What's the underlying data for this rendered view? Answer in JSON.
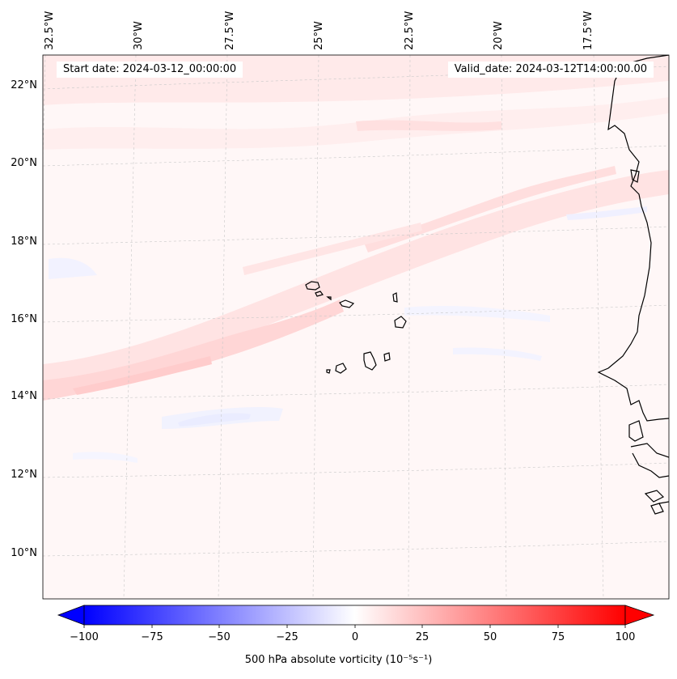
{
  "header": {
    "start_date": "Start date: 2024-03-12_00:00:00",
    "valid_date": "Valid_date: 2024-03-12T14:00:00.00"
  },
  "axes": {
    "lon_labels": [
      "32.5°W",
      "30°W",
      "27.5°W",
      "25°W",
      "22.5°W",
      "20°W",
      "17.5°W"
    ],
    "lat_labels": [
      "22°N",
      "20°N",
      "18°N",
      "16°N",
      "14°N",
      "12°N",
      "10°N"
    ]
  },
  "colorbar": {
    "ticks": [
      "−100",
      "−75",
      "−50",
      "−25",
      "0",
      "25",
      "50",
      "75",
      "100"
    ],
    "range": [
      -100,
      100
    ],
    "label": "500 hPa absolute vorticity (10⁻⁵s⁻¹)",
    "extend": "both",
    "colors": {
      "neg": "#0000ff",
      "zero": "#ffffff",
      "pos": "#ff0000"
    }
  },
  "map": {
    "field": "500 hPa absolute vorticity",
    "extent": {
      "lon_w": -33,
      "lon_e": -15,
      "lat_s": 9,
      "lat_n": 23
    },
    "gridlines": "dashed",
    "features": [
      "Cape Verde islands",
      "West African coastline"
    ]
  }
}
